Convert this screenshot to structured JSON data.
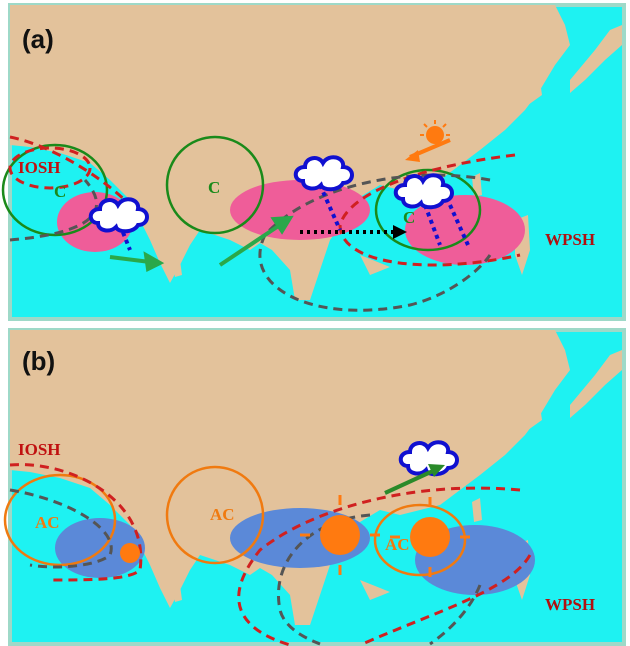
{
  "panels": [
    {
      "label": "(a)",
      "annotations": [
        "C",
        "C",
        "C",
        "IOSH",
        "WPSH"
      ]
    },
    {
      "label": "(b)",
      "annotations": [
        "IOSH",
        "AC",
        "AC",
        "AC",
        "WPSH"
      ]
    }
  ]
}
